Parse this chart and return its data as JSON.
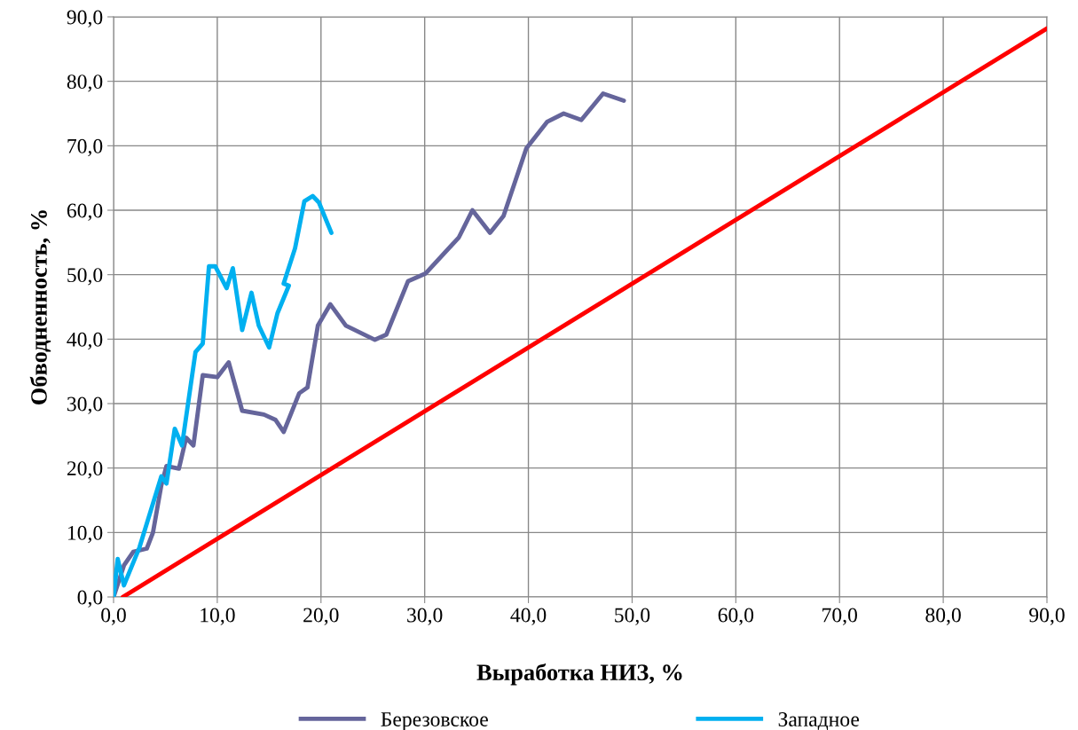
{
  "chart_data": {
    "type": "line",
    "xlabel": "Выработка НИЗ, %",
    "ylabel": "Обводненность, %",
    "xlim": [
      0,
      90
    ],
    "ylim": [
      0,
      90
    ],
    "xticks": [
      {
        "value": 0,
        "label": "0,0"
      },
      {
        "value": 10,
        "label": "10,0"
      },
      {
        "value": 20,
        "label": "20,0"
      },
      {
        "value": 30,
        "label": "30,0"
      },
      {
        "value": 40,
        "label": "40,0"
      },
      {
        "value": 50,
        "label": "50,0"
      },
      {
        "value": 60,
        "label": "60,0"
      },
      {
        "value": 70,
        "label": "70,0"
      },
      {
        "value": 80,
        "label": "80,0"
      },
      {
        "value": 90,
        "label": "90,0"
      }
    ],
    "yticks": [
      {
        "value": 0,
        "label": "0,0"
      },
      {
        "value": 10,
        "label": "10,0"
      },
      {
        "value": 20,
        "label": "20,0"
      },
      {
        "value": 30,
        "label": "30,0"
      },
      {
        "value": 40,
        "label": "40,0"
      },
      {
        "value": 50,
        "label": "50,0"
      },
      {
        "value": 60,
        "label": "60,0"
      },
      {
        "value": 70,
        "label": "70,0"
      },
      {
        "value": 80,
        "label": "80,0"
      },
      {
        "value": 90,
        "label": "90,0"
      }
    ],
    "grid": true,
    "legend": "bottom",
    "marker": "none",
    "line_style": "solid",
    "series": [
      {
        "name": "Березовское",
        "color": "#65659b",
        "x": [
          0,
          1.0,
          1.9,
          3.2,
          3.8,
          4.6,
          5.1,
          6.3,
          7.0,
          7.7,
          8.6,
          10.0,
          11.1,
          12.4,
          14.5,
          15.6,
          16.4,
          17.9,
          18.7,
          19.7,
          20.9,
          22.4,
          25.2,
          26.3,
          28.4,
          30.1,
          33.3,
          34.6,
          36.3,
          37.6,
          39.8,
          41.8,
          43.4,
          45.1,
          47.2,
          49.2
        ],
        "values": [
          0,
          4.9,
          7.0,
          7.5,
          10.0,
          17.3,
          20.3,
          19.9,
          24.7,
          23.5,
          34.4,
          34.1,
          36.4,
          28.9,
          28.3,
          27.5,
          25.6,
          31.6,
          32.5,
          42.1,
          45.4,
          42.1,
          39.9,
          40.7,
          49.0,
          50.2,
          55.8,
          60.0,
          56.5,
          59.1,
          69.6,
          73.7,
          75.0,
          74.0,
          78.1,
          77.0
        ]
      },
      {
        "name": "Западное",
        "color": "#00b0f0",
        "x": [
          0,
          0.4,
          1.0,
          2.5,
          4.6,
          5.1,
          5.9,
          6.6,
          7.9,
          8.6,
          9.2,
          9.8,
          10.9,
          11.5,
          12.4,
          13.3,
          14.0,
          15.0,
          15.8,
          16.9,
          16.4,
          17.5,
          18.4,
          19.2,
          19.8,
          21.0
        ],
        "values": [
          0,
          5.9,
          1.8,
          7.7,
          18.7,
          17.6,
          26.1,
          23.5,
          38.0,
          39.3,
          51.3,
          51.3,
          47.9,
          51.0,
          41.4,
          47.2,
          42.1,
          38.7,
          44.0,
          48.3,
          48.6,
          54.1,
          61.4,
          62.2,
          61.2,
          56.5
        ]
      },
      {
        "color": "#ff0000",
        "x": [
          0.9,
          90.0
        ],
        "values": [
          0,
          88.2
        ]
      }
    ]
  }
}
